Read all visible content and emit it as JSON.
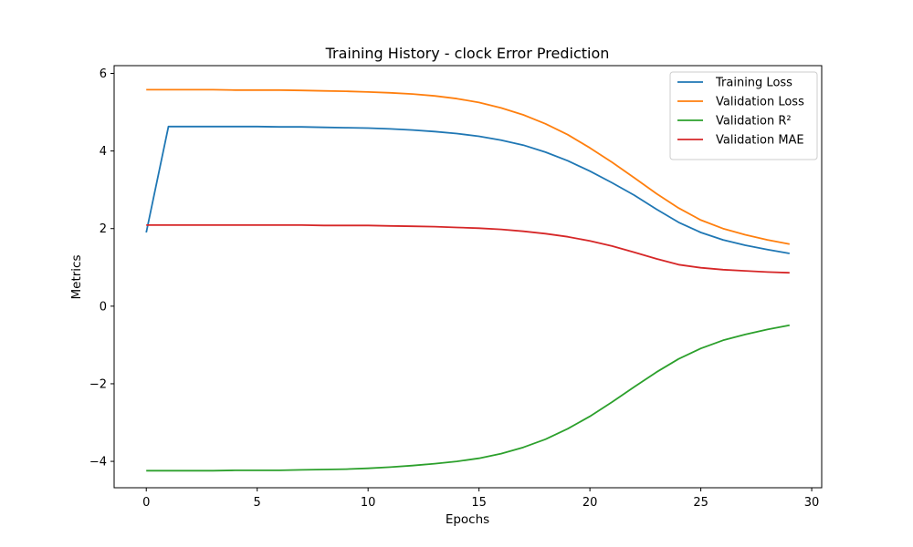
{
  "chart_data": {
    "type": "line",
    "title": "Training History - clock Error Prediction",
    "xlabel": "Epochs",
    "ylabel": "Metrics",
    "xlim": [
      -1.45,
      30.45
    ],
    "ylim": [
      -4.68,
      6.2
    ],
    "xticks": [
      0,
      5,
      10,
      15,
      20,
      25,
      30
    ],
    "yticks": [
      -4,
      -2,
      0,
      2,
      4,
      6
    ],
    "xtick_labels": [
      "0",
      "5",
      "10",
      "15",
      "20",
      "25",
      "30"
    ],
    "ytick_labels": [
      "−4",
      "−2",
      "0",
      "2",
      "4",
      "6"
    ],
    "grid": false,
    "legend_position": "top-right",
    "x": [
      0,
      1,
      2,
      3,
      4,
      5,
      6,
      7,
      8,
      9,
      10,
      11,
      12,
      13,
      14,
      15,
      16,
      17,
      18,
      19,
      20,
      21,
      22,
      23,
      24,
      25,
      26,
      27,
      28,
      29
    ],
    "series": [
      {
        "name": "Training Loss",
        "color": "#1f77b4",
        "values": [
          1.9,
          4.63,
          4.63,
          4.63,
          4.63,
          4.63,
          4.62,
          4.62,
          4.61,
          4.6,
          4.59,
          4.57,
          4.54,
          4.5,
          4.45,
          4.38,
          4.28,
          4.15,
          3.97,
          3.75,
          3.48,
          3.18,
          2.86,
          2.5,
          2.16,
          1.9,
          1.71,
          1.57,
          1.46,
          1.36
        ]
      },
      {
        "name": "Validation Loss",
        "color": "#ff7f0e",
        "values": [
          5.58,
          5.58,
          5.58,
          5.58,
          5.57,
          5.57,
          5.57,
          5.56,
          5.55,
          5.54,
          5.52,
          5.5,
          5.47,
          5.42,
          5.35,
          5.25,
          5.11,
          4.93,
          4.7,
          4.42,
          4.08,
          3.71,
          3.31,
          2.9,
          2.53,
          2.22,
          2.0,
          1.84,
          1.71,
          1.6
        ]
      },
      {
        "name": "Validation R²",
        "color": "#2ca02c",
        "values": [
          -4.24,
          -4.24,
          -4.24,
          -4.24,
          -4.23,
          -4.23,
          -4.23,
          -4.22,
          -4.21,
          -4.2,
          -4.18,
          -4.15,
          -4.11,
          -4.06,
          -4.0,
          -3.92,
          -3.8,
          -3.64,
          -3.43,
          -3.16,
          -2.84,
          -2.47,
          -2.08,
          -1.7,
          -1.36,
          -1.09,
          -0.88,
          -0.73,
          -0.6,
          -0.49
        ]
      },
      {
        "name": "Validation MAE",
        "color": "#d62728",
        "values": [
          2.09,
          2.09,
          2.09,
          2.09,
          2.09,
          2.09,
          2.09,
          2.09,
          2.08,
          2.08,
          2.08,
          2.07,
          2.06,
          2.05,
          2.03,
          2.01,
          1.98,
          1.93,
          1.87,
          1.79,
          1.68,
          1.55,
          1.39,
          1.22,
          1.07,
          0.99,
          0.94,
          0.91,
          0.88,
          0.86
        ]
      }
    ]
  }
}
